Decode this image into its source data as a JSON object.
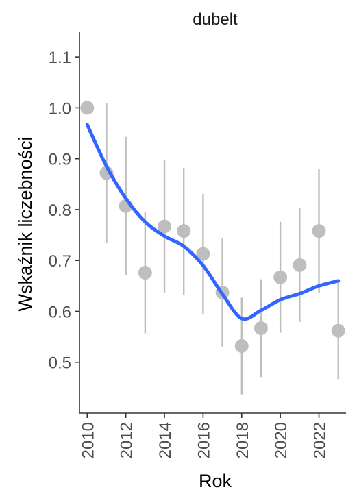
{
  "chart_data": {
    "type": "scatter",
    "title": "dubelt",
    "xlabel": "Rok",
    "ylabel": "Wskaźnik liczebności",
    "xlim": [
      2009.6,
      2023.4
    ],
    "ylim": [
      0.4,
      1.15
    ],
    "x_ticks": [
      2010,
      2012,
      2014,
      2016,
      2018,
      2020,
      2022
    ],
    "y_ticks": [
      0.5,
      0.6,
      0.7,
      0.8,
      0.9,
      1.0,
      1.1
    ],
    "y_tick_labels": [
      "0.5",
      "0.6",
      "0.7",
      "0.8",
      "0.9",
      "1.0",
      "1.1"
    ],
    "grid": false,
    "points": [
      {
        "x": 2010,
        "y": 1.0,
        "lower": null,
        "upper": null
      },
      {
        "x": 2011,
        "y": 0.872,
        "lower": 0.735,
        "upper": 1.01
      },
      {
        "x": 2012,
        "y": 0.807,
        "lower": 0.672,
        "upper": 0.943
      },
      {
        "x": 2013,
        "y": 0.676,
        "lower": 0.557,
        "upper": 0.795
      },
      {
        "x": 2014,
        "y": 0.767,
        "lower": 0.636,
        "upper": 0.898
      },
      {
        "x": 2015,
        "y": 0.758,
        "lower": 0.633,
        "upper": 0.882
      },
      {
        "x": 2016,
        "y": 0.713,
        "lower": 0.595,
        "upper": 0.831
      },
      {
        "x": 2017,
        "y": 0.637,
        "lower": 0.531,
        "upper": 0.744
      },
      {
        "x": 2018,
        "y": 0.532,
        "lower": 0.437,
        "upper": 0.627
      },
      {
        "x": 2019,
        "y": 0.567,
        "lower": 0.471,
        "upper": 0.663
      },
      {
        "x": 2020,
        "y": 0.667,
        "lower": 0.558,
        "upper": 0.776
      },
      {
        "x": 2021,
        "y": 0.691,
        "lower": 0.579,
        "upper": 0.803
      },
      {
        "x": 2022,
        "y": 0.758,
        "lower": 0.636,
        "upper": 0.88
      },
      {
        "x": 2023,
        "y": 0.562,
        "lower": 0.467,
        "upper": 0.657
      }
    ],
    "trend": {
      "x": [
        2010,
        2011,
        2012,
        2013,
        2014,
        2015,
        2016,
        2017,
        2018,
        2019,
        2020,
        2021,
        2022,
        2023
      ],
      "y": [
        0.967,
        0.885,
        0.822,
        0.776,
        0.748,
        0.728,
        0.69,
        0.634,
        0.586,
        0.602,
        0.623,
        0.635,
        0.65,
        0.66
      ]
    },
    "colors": {
      "points": "#bebebe",
      "error_bars": "#bebebe",
      "trend": "#3366ff",
      "axis": "#333333",
      "tick_text": "#4d4d4d"
    }
  }
}
